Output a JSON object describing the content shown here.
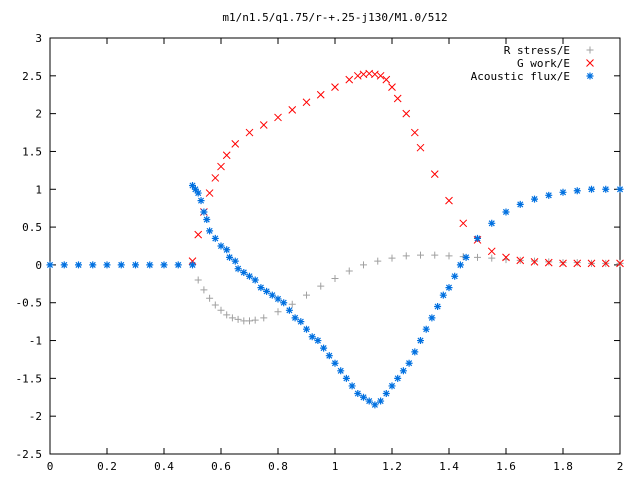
{
  "chart_data": {
    "type": "scatter",
    "title": "m1/n1.5/q1.75/r-+.25-j130/M1.0/512",
    "xlabel": "",
    "ylabel": "",
    "xlim": [
      0,
      2
    ],
    "ylim": [
      -2.5,
      3
    ],
    "x_ticks": [
      "0",
      "0.2",
      "0.4",
      "0.6",
      "0.8",
      "1",
      "1.2",
      "1.4",
      "1.6",
      "1.8",
      "2"
    ],
    "y_ticks": [
      "-2.5",
      "-2",
      "-1.5",
      "-1",
      "-0.5",
      "0",
      "0.5",
      "1",
      "1.5",
      "2",
      "2.5",
      "3"
    ],
    "legend_position": "top-right",
    "grid": false,
    "series": [
      {
        "name": "R stress/E",
        "marker": "plus",
        "color": "#a0a0a0",
        "x": [
          0.5,
          0.52,
          0.54,
          0.56,
          0.58,
          0.6,
          0.62,
          0.64,
          0.66,
          0.68,
          0.7,
          0.72,
          0.75,
          0.8,
          0.85,
          0.9,
          0.95,
          1.0,
          1.05,
          1.1,
          1.15,
          1.2,
          1.25,
          1.3,
          1.35,
          1.4,
          1.45,
          1.5,
          1.55,
          1.6,
          1.65,
          1.7,
          1.75,
          1.8,
          1.85,
          1.9,
          1.95,
          2.0
        ],
        "y": [
          0,
          -0.2,
          -0.33,
          -0.44,
          -0.53,
          -0.6,
          -0.66,
          -0.7,
          -0.72,
          -0.74,
          -0.74,
          -0.73,
          -0.7,
          -0.62,
          -0.52,
          -0.4,
          -0.28,
          -0.18,
          -0.08,
          0.0,
          0.05,
          0.09,
          0.12,
          0.13,
          0.13,
          0.12,
          0.11,
          0.1,
          0.09,
          0.07,
          0.06,
          0.05,
          0.04,
          0.03,
          0.03,
          0.02,
          0.02,
          0.02
        ]
      },
      {
        "name": "G work/E",
        "marker": "cross",
        "color": "#ff0000",
        "x": [
          0.5,
          0.52,
          0.54,
          0.56,
          0.58,
          0.6,
          0.62,
          0.65,
          0.7,
          0.75,
          0.8,
          0.85,
          0.9,
          0.95,
          1.0,
          1.05,
          1.08,
          1.1,
          1.12,
          1.14,
          1.16,
          1.18,
          1.2,
          1.22,
          1.25,
          1.28,
          1.3,
          1.35,
          1.4,
          1.45,
          1.5,
          1.55,
          1.6,
          1.65,
          1.7,
          1.75,
          1.8,
          1.85,
          1.9,
          1.95,
          2.0
        ],
        "y": [
          0.05,
          0.4,
          0.7,
          0.95,
          1.15,
          1.3,
          1.45,
          1.6,
          1.75,
          1.85,
          1.95,
          2.05,
          2.15,
          2.25,
          2.35,
          2.45,
          2.5,
          2.52,
          2.53,
          2.52,
          2.5,
          2.45,
          2.35,
          2.2,
          2.0,
          1.75,
          1.55,
          1.2,
          0.85,
          0.55,
          0.33,
          0.18,
          0.1,
          0.06,
          0.04,
          0.03,
          0.02,
          0.02,
          0.02,
          0.02,
          0.02
        ]
      },
      {
        "name": "Acoustic flux/E",
        "marker": "star",
        "color": "#0070e0",
        "x": [
          0.0,
          0.05,
          0.1,
          0.15,
          0.2,
          0.25,
          0.3,
          0.35,
          0.4,
          0.45,
          0.5,
          0.5,
          0.51,
          0.52,
          0.53,
          0.54,
          0.55,
          0.56,
          0.58,
          0.6,
          0.62,
          0.63,
          0.65,
          0.66,
          0.68,
          0.7,
          0.72,
          0.74,
          0.76,
          0.78,
          0.8,
          0.82,
          0.84,
          0.86,
          0.88,
          0.9,
          0.92,
          0.94,
          0.96,
          0.98,
          1.0,
          1.02,
          1.04,
          1.06,
          1.08,
          1.1,
          1.12,
          1.14,
          1.16,
          1.18,
          1.2,
          1.22,
          1.24,
          1.26,
          1.28,
          1.3,
          1.32,
          1.34,
          1.36,
          1.38,
          1.4,
          1.42,
          1.44,
          1.46,
          1.5,
          1.55,
          1.6,
          1.65,
          1.7,
          1.75,
          1.8,
          1.85,
          1.9,
          1.95,
          2.0
        ],
        "y": [
          0,
          0,
          0,
          0,
          0,
          0,
          0,
          0,
          0,
          0,
          0,
          1.05,
          1.0,
          0.95,
          0.85,
          0.7,
          0.6,
          0.45,
          0.35,
          0.25,
          0.2,
          0.1,
          0.05,
          -0.05,
          -0.1,
          -0.15,
          -0.2,
          -0.3,
          -0.35,
          -0.4,
          -0.45,
          -0.5,
          -0.6,
          -0.7,
          -0.75,
          -0.85,
          -0.95,
          -1.0,
          -1.1,
          -1.2,
          -1.3,
          -1.4,
          -1.5,
          -1.6,
          -1.7,
          -1.75,
          -1.8,
          -1.85,
          -1.8,
          -1.7,
          -1.6,
          -1.5,
          -1.4,
          -1.3,
          -1.15,
          -1.0,
          -0.85,
          -0.7,
          -0.55,
          -0.4,
          -0.3,
          -0.15,
          0.0,
          0.1,
          0.35,
          0.55,
          0.7,
          0.8,
          0.87,
          0.92,
          0.96,
          0.98,
          1.0,
          1.0,
          1.0
        ]
      }
    ]
  }
}
